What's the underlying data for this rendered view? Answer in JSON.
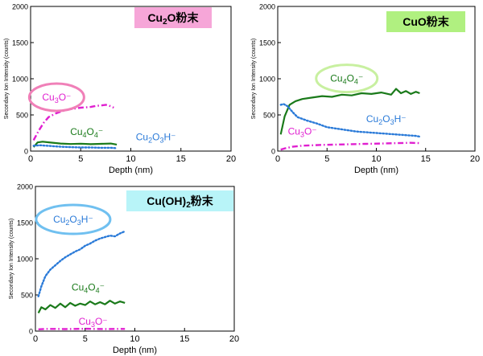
{
  "chart_data": [
    {
      "type": "line",
      "badge": {
        "base": "Cu",
        "sub": "2",
        "rest": "O粉末",
        "bg": "#f6a6d8"
      },
      "xlabel": "Depth (nm)",
      "ylabel": "Secondary Ion Intensity (counts)",
      "xlim": [
        0,
        20
      ],
      "ylim": [
        0,
        2000
      ],
      "xticks": [
        0,
        5,
        10,
        15,
        20
      ],
      "yticks": [
        0,
        500,
        1000,
        1500,
        2000
      ],
      "series": [
        {
          "key": "cu3o",
          "label": {
            "base": "Cu",
            "sub": "3",
            "rest": "O⁻",
            "sub2": "",
            "rest2": ""
          },
          "color": "#e020d0",
          "style": "dashdot",
          "circled": true,
          "ringColor": "#f080b8",
          "label_at": [
            2.6,
            700
          ],
          "x": [
            0.3,
            0.8,
            1.3,
            1.8,
            2.5,
            3.2,
            4.0,
            5.0,
            6.0,
            6.5,
            7.0,
            7.5,
            8.0,
            8.3
          ],
          "y": [
            150,
            280,
            390,
            470,
            520,
            555,
            580,
            600,
            610,
            625,
            630,
            640,
            620,
            600
          ]
        },
        {
          "key": "cu4o4",
          "label": {
            "base": "Cu",
            "sub": "4",
            "rest": "O",
            "sub2": "4",
            "rest2": "⁻"
          },
          "color": "#1a7a1a",
          "style": "solid",
          "circled": false,
          "label_at": [
            5.6,
            225
          ],
          "x": [
            0.3,
            0.7,
            1.2,
            2.0,
            3.0,
            4.0,
            5.0,
            6.0,
            7.0,
            8.0,
            8.6
          ],
          "y": [
            55,
            120,
            130,
            118,
            105,
            98,
            102,
            95,
            100,
            105,
            90
          ]
        },
        {
          "key": "cu2o3h",
          "label": {
            "base": "Cu",
            "sub": "2",
            "rest": "O",
            "sub2": "3",
            "rest2": "H⁻"
          },
          "color": "#2a7ad8",
          "style": "dotted",
          "circled": false,
          "label_at": [
            12.5,
            150
          ],
          "x": [
            0.3,
            1.0,
            2.0,
            3.0,
            4.0,
            5.0,
            6.0,
            7.0,
            8.0,
            8.6
          ],
          "y": [
            75,
            80,
            70,
            60,
            55,
            50,
            50,
            45,
            45,
            40
          ]
        }
      ]
    },
    {
      "type": "line",
      "badge": {
        "base": "CuO粉末",
        "sub": "",
        "rest": "",
        "bg": "#b0f080"
      },
      "xlabel": "Depth (nm)",
      "ylabel": "Secondary Ion Intensity (counts)",
      "xlim": [
        0,
        20
      ],
      "ylim": [
        0,
        2000
      ],
      "xticks": [
        0,
        5,
        10,
        15,
        20
      ],
      "yticks": [
        0,
        500,
        1000,
        1500,
        2000
      ],
      "series": [
        {
          "key": "cu4o4",
          "label": {
            "base": "Cu",
            "sub": "4",
            "rest": "O",
            "sub2": "4",
            "rest2": "⁻"
          },
          "color": "#1a7a1a",
          "style": "solid",
          "circled": true,
          "ringColor": "#c8f0a0",
          "label_at": [
            7.0,
            960
          ],
          "x": [
            0.3,
            0.7,
            1.2,
            1.8,
            2.5,
            3.5,
            4.5,
            5.5,
            6.5,
            7.5,
            8.5,
            9.5,
            10.5,
            11.5,
            12.0,
            12.5,
            13.0,
            13.5,
            14.0,
            14.4
          ],
          "y": [
            230,
            480,
            640,
            690,
            720,
            740,
            760,
            750,
            780,
            770,
            800,
            790,
            810,
            780,
            860,
            800,
            830,
            790,
            820,
            800
          ]
        },
        {
          "key": "cu2o3h",
          "label": {
            "base": "Cu",
            "sub": "2",
            "rest": "O",
            "sub2": "3",
            "rest2": "H⁻"
          },
          "color": "#2a7ad8",
          "style": "dotted",
          "circled": false,
          "label_at": [
            11.0,
            400
          ],
          "x": [
            0.3,
            0.6,
            1.0,
            1.5,
            2.0,
            3.0,
            4.0,
            5.0,
            6.0,
            7.0,
            8.0,
            9.0,
            10.0,
            11.0,
            12.0,
            13.0,
            14.0,
            14.4
          ],
          "y": [
            640,
            650,
            620,
            540,
            470,
            420,
            380,
            330,
            310,
            290,
            270,
            260,
            250,
            240,
            230,
            220,
            210,
            200
          ]
        },
        {
          "key": "cu3o",
          "label": {
            "base": "Cu",
            "sub": "3",
            "rest": "O⁻",
            "sub2": "",
            "rest2": ""
          },
          "color": "#e020d0",
          "style": "dashdot",
          "circled": false,
          "label_at": [
            2.5,
            230
          ],
          "x": [
            0.3,
            0.8,
            1.5,
            2.5,
            3.5,
            4.5,
            6.0,
            7.5,
            9.0,
            10.5,
            12.0,
            13.5,
            14.4
          ],
          "y": [
            20,
            40,
            60,
            75,
            80,
            85,
            90,
            95,
            100,
            105,
            110,
            115,
            110
          ]
        }
      ]
    },
    {
      "type": "line",
      "badge": {
        "base": "Cu(OH)",
        "sub": "2",
        "rest": "粉末",
        "bg": "#b8f4f8"
      },
      "xlabel": "Depth (nm)",
      "ylabel": "Secondary Ion Intensity (counts)",
      "xlim": [
        0,
        20
      ],
      "ylim": [
        0,
        2000
      ],
      "xticks": [
        0,
        5,
        10,
        15,
        20
      ],
      "yticks": [
        0,
        500,
        1000,
        1500,
        2000
      ],
      "series": [
        {
          "key": "cu2o3h",
          "label": {
            "base": "Cu",
            "sub": "2",
            "rest": "O",
            "sub2": "3",
            "rest2": "H⁻"
          },
          "color": "#2a7ad8",
          "style": "dotted",
          "circled": true,
          "ringColor": "#70c0f0",
          "label_at": [
            3.8,
            1500
          ],
          "x": [
            0.3,
            0.6,
            1.0,
            1.5,
            2.0,
            2.5,
            3.0,
            3.5,
            4.0,
            4.5,
            5.0,
            5.5,
            6.0,
            6.5,
            7.0,
            7.5,
            8.0,
            8.5,
            9.0
          ],
          "y": [
            480,
            620,
            760,
            850,
            910,
            970,
            1020,
            1060,
            1100,
            1130,
            1180,
            1210,
            1250,
            1280,
            1300,
            1320,
            1310,
            1350,
            1380
          ]
        },
        {
          "key": "cu4o4",
          "label": {
            "base": "Cu",
            "sub": "4",
            "rest": "O",
            "sub2": "4",
            "rest2": "⁻"
          },
          "color": "#1a7a1a",
          "style": "solid",
          "circled": false,
          "label_at": [
            5.3,
            560
          ],
          "x": [
            0.3,
            0.6,
            1.0,
            1.5,
            2.0,
            2.5,
            3.0,
            3.5,
            4.0,
            4.5,
            5.0,
            5.5,
            6.0,
            6.5,
            7.0,
            7.5,
            8.0,
            8.5,
            9.0
          ],
          "y": [
            250,
            330,
            300,
            360,
            320,
            380,
            330,
            390,
            350,
            380,
            360,
            410,
            370,
            400,
            370,
            420,
            380,
            410,
            390
          ]
        },
        {
          "key": "cu3o",
          "label": {
            "base": "Cu",
            "sub": "3",
            "rest": "O⁻",
            "sub2": "",
            "rest2": ""
          },
          "color": "#e020d0",
          "style": "dashdot",
          "circled": false,
          "label_at": [
            5.8,
            90
          ],
          "x": [
            0.3,
            1.0,
            2.0,
            3.0,
            4.0,
            5.0,
            6.0,
            7.0,
            8.0,
            9.0
          ],
          "y": [
            25,
            30,
            30,
            28,
            30,
            32,
            30,
            28,
            30,
            30
          ]
        }
      ]
    }
  ]
}
